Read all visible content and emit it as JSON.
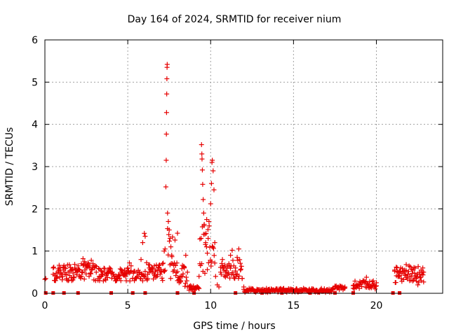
{
  "chart_data": {
    "type": "scatter",
    "title": "Day 164 of 2024, SRMTID for receiver nium",
    "xlabel": "GPS time / hours",
    "ylabel": "SRMTID / TECUs",
    "xlim": [
      0,
      24
    ],
    "ylim": [
      0,
      6
    ],
    "xticks": [
      0,
      5,
      10,
      15,
      20
    ],
    "xtick_labels": [
      "0",
      "5",
      "10",
      "15",
      "20"
    ],
    "yticks": [
      0,
      1,
      2,
      3,
      4,
      5,
      6
    ],
    "ytick_labels": [
      "0",
      "1",
      "2",
      "3",
      "4",
      "5",
      "6"
    ],
    "grid": true,
    "marker": "plus",
    "color": "#e60000",
    "series": [
      {
        "name": "SRMTID",
        "points": [
          [
            0.0,
            0.33
          ],
          [
            0.05,
            0.35
          ],
          [
            0.5,
            0.45
          ],
          [
            0.6,
            0.42
          ],
          [
            0.7,
            0.38
          ],
          [
            0.8,
            0.5
          ],
          [
            0.9,
            0.55
          ],
          [
            1.0,
            0.45
          ],
          [
            1.1,
            0.62
          ],
          [
            1.2,
            0.5
          ],
          [
            1.3,
            0.35
          ],
          [
            1.4,
            0.3
          ],
          [
            1.5,
            0.42
          ],
          [
            1.6,
            0.55
          ],
          [
            1.7,
            0.48
          ],
          [
            1.8,
            0.6
          ],
          [
            1.9,
            0.5
          ],
          [
            2.0,
            0.65
          ],
          [
            2.1,
            0.55
          ],
          [
            2.2,
            0.7
          ],
          [
            2.3,
            0.82
          ],
          [
            2.4,
            0.75
          ],
          [
            2.5,
            0.6
          ],
          [
            2.6,
            0.72
          ],
          [
            2.7,
            0.65
          ],
          [
            2.8,
            0.78
          ],
          [
            2.9,
            0.7
          ],
          [
            3.0,
            0.6
          ],
          [
            3.1,
            0.5
          ],
          [
            3.2,
            0.35
          ],
          [
            3.3,
            0.3
          ],
          [
            3.4,
            0.4
          ],
          [
            3.5,
            0.45
          ],
          [
            3.6,
            0.5
          ],
          [
            3.7,
            0.42
          ],
          [
            3.8,
            0.55
          ],
          [
            3.9,
            0.6
          ],
          [
            4.0,
            0.5
          ],
          [
            4.1,
            0.45
          ],
          [
            4.2,
            0.35
          ],
          [
            4.3,
            0.3
          ],
          [
            4.4,
            0.38
          ],
          [
            4.5,
            0.42
          ],
          [
            4.6,
            0.5
          ],
          [
            4.7,
            0.45
          ],
          [
            4.8,
            0.55
          ],
          [
            4.9,
            0.5
          ],
          [
            5.0,
            0.6
          ],
          [
            5.1,
            0.72
          ],
          [
            5.2,
            0.65
          ],
          [
            5.3,
            0.35
          ],
          [
            5.4,
            0.3
          ],
          [
            5.5,
            0.35
          ],
          [
            5.6,
            0.4
          ],
          [
            5.7,
            0.5
          ],
          [
            5.8,
            0.8
          ],
          [
            5.9,
            1.2
          ],
          [
            6.0,
            1.42
          ],
          [
            6.05,
            1.35
          ],
          [
            6.1,
            0.35
          ],
          [
            6.2,
            0.45
          ],
          [
            6.3,
            0.6
          ],
          [
            6.4,
            0.55
          ],
          [
            6.5,
            0.5
          ],
          [
            6.6,
            0.65
          ],
          [
            6.7,
            0.55
          ],
          [
            6.8,
            0.45
          ],
          [
            6.9,
            0.6
          ],
          [
            7.0,
            0.5
          ],
          [
            7.1,
            0.7
          ],
          [
            7.2,
            1.0
          ],
          [
            7.25,
            1.05
          ],
          [
            7.3,
            2.52
          ],
          [
            7.32,
            3.15
          ],
          [
            7.33,
            3.77
          ],
          [
            7.34,
            4.28
          ],
          [
            7.35,
            4.72
          ],
          [
            7.36,
            5.08
          ],
          [
            7.37,
            5.35
          ],
          [
            7.38,
            5.42
          ],
          [
            7.4,
            1.9
          ],
          [
            7.45,
            1.7
          ],
          [
            7.5,
            1.5
          ],
          [
            7.55,
            1.3
          ],
          [
            7.6,
            1.1
          ],
          [
            7.65,
            0.9
          ],
          [
            7.7,
            0.7
          ],
          [
            7.8,
            0.55
          ],
          [
            7.9,
            0.42
          ],
          [
            8.0,
            0.3
          ],
          [
            8.1,
            0.25
          ],
          [
            8.2,
            0.3
          ],
          [
            8.3,
            0.4
          ],
          [
            8.4,
            0.6
          ],
          [
            8.5,
            0.9
          ],
          [
            8.6,
            0.5
          ],
          [
            8.7,
            0.15
          ],
          [
            8.8,
            0.12
          ],
          [
            8.9,
            0.1
          ],
          [
            9.0,
            0.1
          ],
          [
            9.1,
            0.12
          ],
          [
            9.2,
            0.15
          ],
          [
            9.3,
            0.4
          ],
          [
            9.35,
            0.7
          ],
          [
            9.45,
            3.52
          ],
          [
            9.47,
            3.3
          ],
          [
            9.48,
            3.18
          ],
          [
            9.5,
            2.92
          ],
          [
            9.52,
            2.58
          ],
          [
            9.55,
            2.22
          ],
          [
            9.58,
            1.9
          ],
          [
            9.6,
            1.6
          ],
          [
            9.65,
            1.4
          ],
          [
            9.7,
            1.2
          ],
          [
            9.75,
            1.1
          ],
          [
            9.8,
            0.95
          ],
          [
            9.85,
            1.3
          ],
          [
            9.9,
            1.7
          ],
          [
            10.0,
            2.12
          ],
          [
            10.05,
            2.6
          ],
          [
            10.08,
            3.1
          ],
          [
            10.1,
            3.15
          ],
          [
            10.15,
            2.9
          ],
          [
            10.2,
            2.45
          ],
          [
            10.25,
            1.2
          ],
          [
            10.3,
            0.4
          ],
          [
            10.4,
            0.2
          ],
          [
            10.5,
            0.15
          ],
          [
            10.6,
            0.5
          ],
          [
            10.7,
            0.65
          ],
          [
            10.8,
            0.55
          ],
          [
            10.9,
            0.5
          ],
          [
            11.0,
            0.6
          ],
          [
            11.1,
            0.7
          ],
          [
            11.2,
            0.9
          ],
          [
            11.3,
            1.02
          ],
          [
            11.4,
            0.65
          ],
          [
            11.5,
            0.6
          ],
          [
            11.6,
            0.85
          ],
          [
            11.7,
            1.05
          ],
          [
            11.8,
            0.55
          ],
          [
            11.9,
            0.35
          ],
          [
            12.0,
            0.15
          ],
          [
            12.2,
            0.08
          ],
          [
            12.5,
            0.08
          ],
          [
            12.8,
            0.06
          ],
          [
            13.1,
            0.05
          ],
          [
            13.4,
            0.06
          ],
          [
            13.7,
            0.08
          ],
          [
            14.0,
            0.1
          ],
          [
            14.3,
            0.06
          ],
          [
            14.6,
            0.07
          ],
          [
            14.9,
            0.08
          ],
          [
            15.2,
            0.1
          ],
          [
            15.5,
            0.07
          ],
          [
            15.8,
            0.06
          ],
          [
            16.1,
            0.08
          ],
          [
            16.4,
            0.07
          ],
          [
            16.7,
            0.06
          ],
          [
            17.0,
            0.08
          ],
          [
            17.3,
            0.07
          ],
          [
            17.5,
            0.12
          ],
          [
            17.7,
            0.15
          ],
          [
            17.9,
            0.14
          ],
          [
            18.1,
            0.15
          ],
          [
            18.6,
            0.12
          ],
          [
            18.8,
            0.18
          ],
          [
            19.0,
            0.22
          ],
          [
            19.2,
            0.3
          ],
          [
            19.4,
            0.38
          ],
          [
            19.6,
            0.28
          ],
          [
            19.8,
            0.22
          ],
          [
            20.0,
            0.25
          ],
          [
            21.1,
            0.55
          ],
          [
            21.2,
            0.62
          ],
          [
            21.3,
            0.4
          ],
          [
            21.4,
            0.42
          ],
          [
            21.5,
            0.35
          ],
          [
            21.6,
            0.5
          ],
          [
            21.7,
            0.55
          ],
          [
            21.8,
            0.68
          ],
          [
            21.9,
            0.45
          ],
          [
            22.0,
            0.3
          ],
          [
            22.1,
            0.4
          ],
          [
            22.2,
            0.55
          ],
          [
            22.3,
            0.48
          ],
          [
            22.4,
            0.35
          ],
          [
            22.5,
            0.2
          ],
          [
            22.6,
            0.45
          ],
          [
            22.7,
            0.55
          ],
          [
            22.8,
            0.6
          ],
          [
            22.85,
            0.5
          ]
        ],
        "fill_bands": [
          [
            0.5,
            3.1,
            0.3,
            0.7
          ],
          [
            3.2,
            5.2,
            0.28,
            0.6
          ],
          [
            5.3,
            6.05,
            0.28,
            0.55
          ],
          [
            6.1,
            7.25,
            0.3,
            0.75
          ],
          [
            7.4,
            8.0,
            0.3,
            1.7
          ],
          [
            8.0,
            8.6,
            0.15,
            0.7
          ],
          [
            8.7,
            9.3,
            0.07,
            0.2
          ],
          [
            9.35,
            10.25,
            0.4,
            1.8
          ],
          [
            10.6,
            11.9,
            0.35,
            0.8
          ],
          [
            12.0,
            17.4,
            0.02,
            0.12
          ],
          [
            17.5,
            18.1,
            0.08,
            0.18
          ],
          [
            18.6,
            20.0,
            0.1,
            0.3
          ],
          [
            21.1,
            22.85,
            0.25,
            0.65
          ]
        ]
      }
    ],
    "gaps": [
      0.05,
      0.5,
      1.15,
      2.0,
      4.0,
      5.3,
      6.05,
      8.0,
      9.0,
      11.5,
      13.1,
      14.3,
      16.0,
      17.5,
      18.6,
      21.0,
      21.4
    ]
  }
}
